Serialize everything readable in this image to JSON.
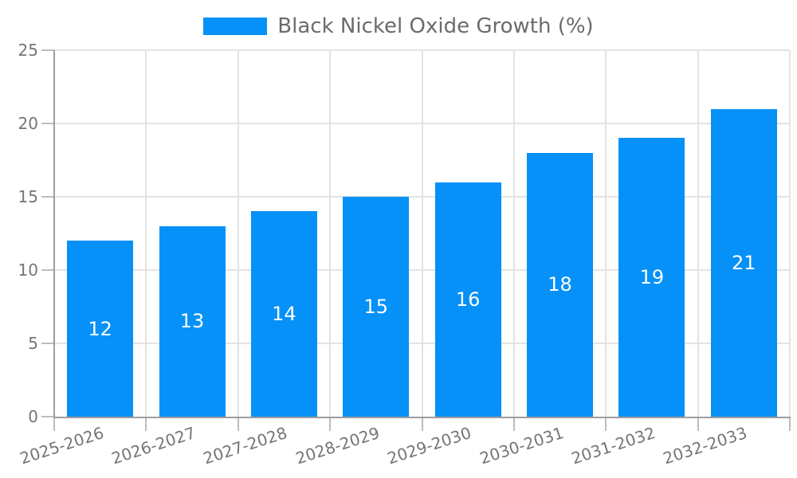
{
  "legend": {
    "label": "Black Nickel Oxide Growth (%)"
  },
  "chart_data": {
    "type": "bar",
    "title": "",
    "categories": [
      "2025-2026",
      "2026-2027",
      "2027-2028",
      "2028-2029",
      "2029-2030",
      "2030-2031",
      "2031-2032",
      "2032-2033"
    ],
    "series": [
      {
        "name": "Black Nickel Oxide Growth (%)",
        "values": [
          12,
          13,
          14,
          15,
          16,
          18,
          19,
          21
        ]
      }
    ],
    "xlabel": "",
    "ylabel": "",
    "ylim": [
      0,
      25
    ],
    "yticks": [
      0,
      5,
      10,
      15,
      20,
      25
    ],
    "grid": true,
    "legend_position": "top",
    "bar_value_labels": true,
    "xtick_rotation_deg": 18
  },
  "colors": {
    "bar": "#0591f8",
    "grid": "#e3e3e3",
    "axis": "#9e9e9e",
    "tick": "#bdbdbd",
    "tick_label": "#757575",
    "legend_text": "#6b6b6b",
    "bar_label": "#ffffff",
    "background": "#ffffff"
  }
}
